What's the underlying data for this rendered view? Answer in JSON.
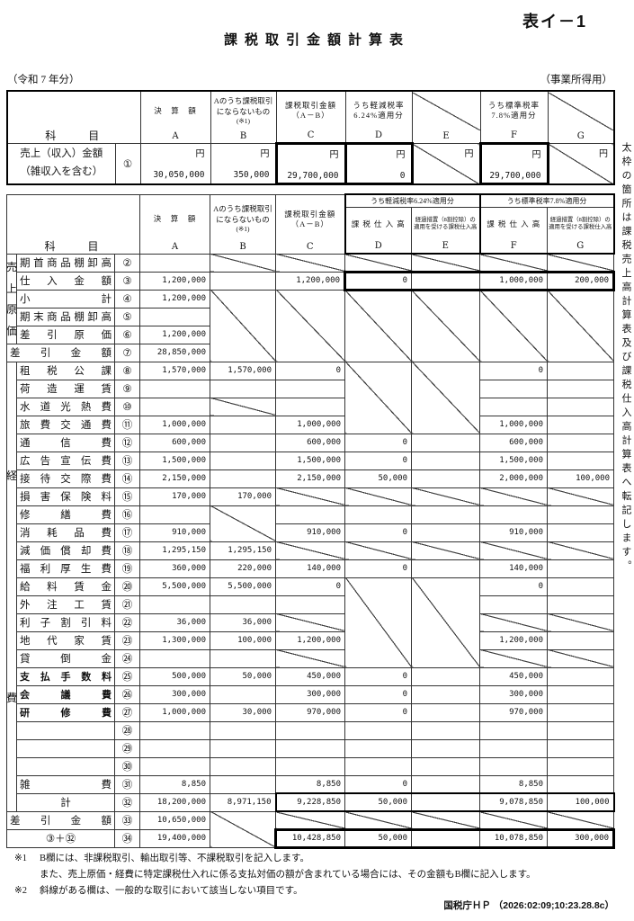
{
  "page": {
    "form_code": "表イ－1",
    "title": "課税取引金額計算表",
    "year_note": "（令和 7 年分）",
    "usage_note": "（事業所得用）",
    "side_note": "太枠の箇所は課税売上高計算表及び課税仕入高計算表へ転記します。",
    "source": "国税庁ＨＰ （2026:02:09;10:23.28.8c）"
  },
  "footnotes": [
    {
      "marker": "※1",
      "text": "B欄には、非課税取引、輸出取引等、不課税取引を記入します。"
    },
    {
      "marker": "",
      "text": "また、売上原価・経費に特定課税仕入れに係る支払対価の額が含まれている場合には、その金額もB欄に記入します。"
    },
    {
      "marker": "※2",
      "text": "斜線がある欄は、一般的な取引において該当しない項目です。"
    }
  ],
  "table1": {
    "header": {
      "subject": "科　　目",
      "a": "決　算　額",
      "b1": "Aのうち課税取引",
      "b2": "にならないもの",
      "b3": "(※1)",
      "c1": "課税取引金額",
      "c2": "（A－B）",
      "d1": "うち軽減税率",
      "d2": "6.24%適用分",
      "f1": "うち標準税率",
      "f2": "7.8%適用分",
      "letters": [
        "A",
        "B",
        "C",
        "D",
        "E",
        "F",
        "G"
      ]
    },
    "row": {
      "label1": "売上（収入）金額",
      "label2": "（雑収入を含む）",
      "no": "①",
      "yen": "円",
      "a": "30,050,000",
      "b": "350,000",
      "c": "29,700,000",
      "d": "0",
      "f": "29,700,000"
    }
  },
  "table2": {
    "header": {
      "subject": "科　　目",
      "a": "決　算　額",
      "b1": "Aのうち課税取引",
      "b2": "にならないもの",
      "b3": "(※1)",
      "c1": "課税取引金額",
      "c2": "（A－B）",
      "d_group": "うち軽減税率6.24%適用分",
      "f_group": "うち標準税率7.8%適用分",
      "sub_taxable": "課 税 仕 入 高",
      "sub_transition1": "経過措置（8割控除）の",
      "sub_transition2": "適用を受ける課税仕入高",
      "letters": [
        "A",
        "B",
        "C",
        "D",
        "E",
        "F",
        "G"
      ]
    },
    "rows": [
      {
        "no": "②",
        "g": "売上原価",
        "grs": 5,
        "label": "期首商品棚卸高",
        "cells": [
          "",
          {
            "d": 1
          },
          {
            "d": 1
          },
          {
            "d": 1
          },
          {
            "d": 1
          },
          {
            "d": 1
          },
          {
            "d": 1
          }
        ]
      },
      {
        "no": "③",
        "label": "仕入金額",
        "cells": [
          "1,200,000",
          "",
          "1,200,000",
          {
            "v": "0",
            "k": "3tbl"
          },
          {
            "v": "",
            "k": "3tb"
          },
          {
            "v": "1,000,000",
            "k": "3tb"
          },
          {
            "v": "200,000",
            "k": "3tbr"
          }
        ]
      },
      {
        "no": "④",
        "label": "小計",
        "cells": [
          "1,200,000",
          {
            "d": 1,
            "rs": 4
          },
          {
            "d": 1,
            "rs": 4
          },
          {
            "d": 1,
            "rs": 4
          },
          {
            "d": 1,
            "rs": 4
          },
          {
            "d": 1,
            "rs": 4
          },
          {
            "d": 1,
            "rs": 4
          }
        ]
      },
      {
        "no": "⑤",
        "label": "期末商品棚卸高",
        "cells": [
          "",
          0,
          0,
          0,
          0,
          0,
          0
        ]
      },
      {
        "no": "⑥",
        "label": "差引原価",
        "cells": [
          "1,200,000",
          0,
          0,
          0,
          0,
          0,
          0
        ]
      },
      {
        "no": "⑦",
        "label": "差引金額",
        "full": true,
        "cells": [
          "28,850,000",
          0,
          0,
          0,
          0,
          0,
          0
        ]
      },
      {
        "no": "⑧",
        "g": "経費",
        "grs": 25,
        "label": "租税公課",
        "cells": [
          "1,570,000",
          "1,570,000",
          "0",
          {
            "d": 1,
            "rs": 4
          },
          {
            "d": 1,
            "rs": 4
          },
          "0",
          ""
        ]
      },
      {
        "no": "⑨",
        "label": "荷造運賃",
        "cells": [
          "",
          "",
          "",
          0,
          0,
          "",
          ""
        ]
      },
      {
        "no": "⑩",
        "label": "水道光熱費",
        "cells": [
          "",
          {
            "d": 1
          },
          "",
          0,
          0,
          "",
          ""
        ]
      },
      {
        "no": "⑪",
        "label": "旅費交通費",
        "cells": [
          "1,000,000",
          "",
          "1,000,000",
          0,
          0,
          "1,000,000",
          ""
        ]
      },
      {
        "no": "⑫",
        "label": "通信費",
        "cells": [
          "600,000",
          "",
          "600,000",
          "0",
          "",
          "600,000",
          ""
        ]
      },
      {
        "no": "⑬",
        "label": "広告宣伝費",
        "cells": [
          "1,500,000",
          "",
          "1,500,000",
          "0",
          "",
          "1,500,000",
          ""
        ]
      },
      {
        "no": "⑭",
        "label": "接待交際費",
        "cells": [
          "2,150,000",
          "",
          "2,150,000",
          "50,000",
          "",
          "2,000,000",
          "100,000"
        ]
      },
      {
        "no": "⑮",
        "label": "損害保険料",
        "cells": [
          "170,000",
          "170,000",
          {
            "d": 1
          },
          {
            "d": 1
          },
          {
            "d": 1
          },
          {
            "d": 1
          },
          {
            "d": 1
          }
        ]
      },
      {
        "no": "⑯",
        "label": "修繕費",
        "cells": [
          "",
          {
            "d": 1,
            "rs": 2
          },
          "",
          "",
          "",
          "",
          ""
        ]
      },
      {
        "no": "⑰",
        "label": "消耗品費",
        "cells": [
          "910,000",
          0,
          "910,000",
          "0",
          "",
          "910,000",
          ""
        ]
      },
      {
        "no": "⑱",
        "label": "減価償却費",
        "cells": [
          "1,295,150",
          "1,295,150",
          {
            "d": 1
          },
          {
            "d": 1
          },
          {
            "d": 1
          },
          {
            "d": 1
          },
          {
            "d": 1
          }
        ]
      },
      {
        "no": "⑲",
        "label": "福利厚生費",
        "cells": [
          "360,000",
          "220,000",
          "140,000",
          "0",
          "",
          "140,000",
          ""
        ]
      },
      {
        "no": "⑳",
        "label": "給料賃金",
        "cells": [
          "5,500,000",
          "5,500,000",
          "0",
          {
            "d": 1,
            "rs": 5
          },
          {
            "d": 1,
            "rs": 5
          },
          "0",
          ""
        ]
      },
      {
        "no": "㉑",
        "label": "外注工賃",
        "cells": [
          "",
          "",
          "",
          0,
          0,
          "",
          ""
        ]
      },
      {
        "no": "㉒",
        "label": "利子割引料",
        "cells": [
          "36,000",
          "36,000",
          {
            "d": 1
          },
          0,
          0,
          {
            "d": 1
          },
          {
            "d": 1
          }
        ]
      },
      {
        "no": "㉓",
        "label": "地代家賃",
        "cells": [
          "1,300,000",
          "100,000",
          "1,200,000",
          0,
          0,
          "1,200,000",
          ""
        ]
      },
      {
        "no": "㉔",
        "label": "貸倒金",
        "cells": [
          "",
          "",
          {
            "d": 1
          },
          0,
          0,
          {
            "d": 1
          },
          {
            "d": 1
          }
        ]
      },
      {
        "no": "㉕",
        "label": "支払手数料",
        "bold": true,
        "cells": [
          "500,000",
          "50,000",
          "450,000",
          "0",
          "",
          "450,000",
          ""
        ]
      },
      {
        "no": "㉖",
        "label": "会議費",
        "bold": true,
        "cells": [
          "300,000",
          "",
          "300,000",
          "0",
          "",
          "300,000",
          ""
        ]
      },
      {
        "no": "㉗",
        "label": "研修費",
        "bold": true,
        "cells": [
          "1,000,000",
          "30,000",
          "970,000",
          "0",
          "",
          "970,000",
          ""
        ]
      },
      {
        "no": "㉘",
        "label": "",
        "cells": [
          "",
          "",
          "",
          "",
          "",
          "",
          ""
        ]
      },
      {
        "no": "㉙",
        "label": "",
        "cells": [
          "",
          "",
          "",
          "",
          "",
          "",
          ""
        ]
      },
      {
        "no": "㉚",
        "label": "",
        "cells": [
          "",
          "",
          "",
          "",
          "",
          "",
          ""
        ]
      },
      {
        "no": "㉛",
        "label": "雑費",
        "cells": [
          "8,850",
          "",
          "8,850",
          "0",
          "",
          "8,850",
          ""
        ]
      },
      {
        "no": "㉜",
        "label": "計",
        "center": true,
        "cells": [
          "18,200,000",
          "8,971,150",
          {
            "v": "9,228,850",
            "k": "2tbl"
          },
          {
            "v": "50,000",
            "k": "2tb"
          },
          {
            "v": "",
            "k": "2tb"
          },
          {
            "v": "9,078,850",
            "k": "2tb"
          },
          {
            "v": "100,000",
            "k": "2tbr"
          }
        ]
      },
      {
        "no": "㉝",
        "label": "差引金額",
        "full": true,
        "cells": [
          "10,650,000",
          {
            "d": 1,
            "rs": 2
          },
          {
            "d": 1
          },
          {
            "d": 1
          },
          {
            "d": 1
          },
          {
            "d": 1
          },
          {
            "d": 1
          }
        ]
      },
      {
        "no": "㉞",
        "label": "③＋㉜",
        "full": true,
        "center": true,
        "cells": [
          "19,400,000",
          0,
          {
            "v": "10,428,850",
            "k": "3tbl"
          },
          {
            "v": "50,000",
            "k": "3tb"
          },
          {
            "v": "",
            "k": "3tb"
          },
          {
            "v": "10,078,850",
            "k": "3tb"
          },
          {
            "v": "300,000",
            "k": "3tbr"
          }
        ]
      }
    ]
  }
}
